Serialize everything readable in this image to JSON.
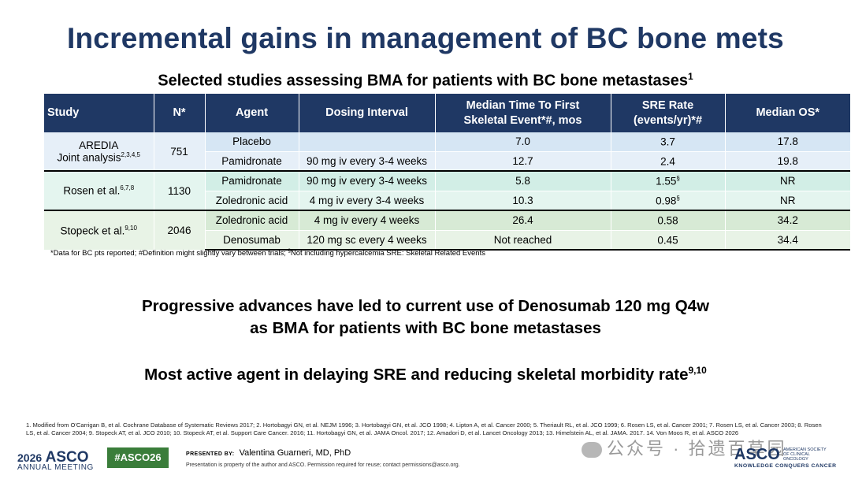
{
  "title": "Incremental gains in management of BC bone mets",
  "subtitle": {
    "text": "Selected studies assessing BMA for patients with BC bone metastases",
    "sup": "1"
  },
  "table": {
    "headers": {
      "study": "Study",
      "n": "N*",
      "agent": "Agent",
      "dosing": "Dosing Interval",
      "ttse_line1": "Median Time To First",
      "ttse_line2": "Skeletal Event*#, mos",
      "sre_line1": "SRE Rate",
      "sre_line2": "(events/yr)*#",
      "os": "Median OS*"
    },
    "groups": [
      {
        "study": "AREDIA",
        "study_line2": "Joint analysis",
        "study_sup": "2,3,4,5",
        "n": "751",
        "rows": [
          {
            "agent": "Placebo",
            "dosing": "",
            "ttse": "7.0",
            "sre": "3.7",
            "sre_sup": "",
            "os": "17.8"
          },
          {
            "agent": "Pamidronate",
            "dosing": "90 mg iv every 3-4 weeks",
            "ttse": "12.7",
            "sre": "2.4",
            "sre_sup": "",
            "os": "19.8"
          }
        ]
      },
      {
        "study": "Rosen et al.",
        "study_sup": "6,7,8",
        "n": "1130",
        "rows": [
          {
            "agent": "Pamidronate",
            "dosing": "90 mg iv every 3-4 weeks",
            "ttse": "5.8",
            "sre": "1.55",
            "sre_sup": "§",
            "os": "NR"
          },
          {
            "agent": "Zoledronic acid",
            "dosing": "4 mg iv every 3-4 weeks",
            "ttse": "10.3",
            "sre": "0.98",
            "sre_sup": "§",
            "os": "NR"
          }
        ]
      },
      {
        "study": "Stopeck et al.",
        "study_sup": "9,10",
        "n": "2046",
        "rows": [
          {
            "agent": "Zoledronic acid",
            "dosing": "4 mg iv every 4 weeks",
            "ttse": "26.4",
            "sre": "0.58",
            "sre_sup": "",
            "os": "34.2"
          },
          {
            "agent": "Denosumab",
            "dosing": "120 mg sc every 4 weeks",
            "ttse": "Not reached",
            "sre": "0.45",
            "sre_sup": "",
            "os": "34.4"
          }
        ]
      }
    ]
  },
  "footnote": {
    "part1": "*Data for BC pts reported;  #Definition might slightly vary between trials; ",
    "sup": "§",
    "part2": "Not including hypercalcemia SRE: Skeletal Related Events"
  },
  "statement1_line1": "Progressive advances have led to current use of Denosumab 120 mg Q4w",
  "statement1_line2": "as BMA for patients with BC bone metastases",
  "statement2": {
    "text": "Most active agent in delaying SRE and reducing skeletal morbidity rate",
    "sup": "9,10"
  },
  "references": "1. Modified from O'Carrigan B, et al. Cochrane Database of Systematic Reviews 2017; 2. Hortobagyi GN, et al. NEJM 1996; 3. Hortobagyi GN, et al. JCO 1998; 4. Lipton A, et al. Cancer 2000; 5. Theriault RL, et al. JCO 1999; 6. Rosen LS, et al. Cancer 2001; 7. Rosen LS, et al. Cancer 2003; 8. Rosen LS, et al. Cancer 2004; 9. Stopeck AT, et al. JCO 2010; 10. Stopeck AT, et al. Support Care Cancer. 2016; 11. Hortobagyi GN, et al. JAMA Oncol. 2017; 12. Amadori D, et al. Lancet Oncology 2013; 13. Himelstein AL, et al. JAMA. 2017. 14. Von Moos R, et al. ASCO 2026",
  "footer": {
    "year": "2026",
    "asco": "ASCO",
    "meeting": "ANNUAL MEETING",
    "hashtag": "#ASCO26",
    "presented_label": "PRESENTED BY:",
    "presenter": "Valentina Guarneri, MD, PhD",
    "property": "Presentation is property of the author and ASCO. Permission required for reuse; contact permissions@asco.org.",
    "watermark": "公众号 · 拾遗百草园",
    "asco_right": "ASCO",
    "asco_right_small": "AMERICAN SOCIETY OF CLINICAL ONCOLOGY",
    "asco_tagline": "KNOWLEDGE CONQUERS CANCER"
  },
  "colors": {
    "title": "#1f3864",
    "header_bg": "#1f3864",
    "hashtag_bg": "#3a7d3a"
  }
}
